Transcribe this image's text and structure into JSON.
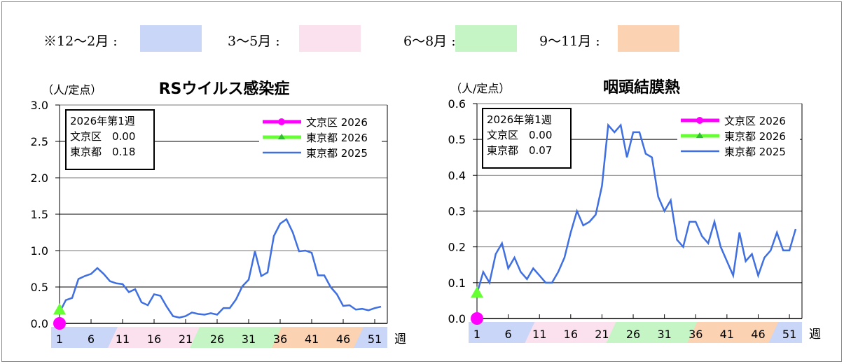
{
  "season_legend": [
    {
      "label": "※12〜2月 :",
      "color": "#c9d6f7"
    },
    {
      "label": "3〜5月 :",
      "color": "#fbe1ee"
    },
    {
      "label": "6〜8月 :",
      "color": "#c5f5c5"
    },
    {
      "label": "9〜11月 :",
      "color": "#fbd3b3"
    }
  ],
  "chart_data": [
    {
      "type": "line",
      "title": "RSウイルス感染症",
      "ylabel": "（人/定点）",
      "xlabel": "週",
      "ylim": [
        0,
        3.0
      ],
      "yticks": [
        "0.0",
        "0.5",
        "1.0",
        "1.5",
        "2.0",
        "2.5",
        "3.0"
      ],
      "ystep": 0.5,
      "xticks": [
        "1",
        "6",
        "11",
        "16",
        "21",
        "26",
        "31",
        "36",
        "41",
        "46",
        "51"
      ],
      "info_box": [
        "2026年第1週",
        "文京区　0.00",
        "東京都　0.18"
      ],
      "series": [
        {
          "name": "文京区 2026",
          "color": "#ff00ff",
          "marker": "circle",
          "values": [
            0.0
          ]
        },
        {
          "name": "東京都 2026",
          "color": "#66ff33",
          "marker": "triangle",
          "values": [
            0.18
          ]
        },
        {
          "name": "東京都 2025",
          "color": "#3f6fe0",
          "marker": "none",
          "values": [
            0.15,
            0.32,
            0.35,
            0.61,
            0.65,
            0.68,
            0.76,
            0.68,
            0.58,
            0.55,
            0.54,
            0.43,
            0.47,
            0.29,
            0.25,
            0.4,
            0.38,
            0.23,
            0.1,
            0.08,
            0.1,
            0.15,
            0.13,
            0.12,
            0.14,
            0.12,
            0.21,
            0.21,
            0.33,
            0.51,
            0.6,
            0.99,
            0.65,
            0.7,
            1.2,
            1.37,
            1.43,
            1.25,
            0.99,
            1.0,
            0.97,
            0.66,
            0.66,
            0.5,
            0.4,
            0.24,
            0.25,
            0.19,
            0.2,
            0.18,
            0.21,
            0.23
          ]
        }
      ]
    },
    {
      "type": "line",
      "title": "咽頭結膜熱",
      "ylabel": "（人/定点）",
      "xlabel": "週",
      "ylim": [
        0,
        0.6
      ],
      "yticks": [
        "0.0",
        "0.1",
        "0.2",
        "0.3",
        "0.4",
        "0.5",
        "0.6"
      ],
      "ystep": 0.1,
      "xticks": [
        "1",
        "6",
        "11",
        "16",
        "21",
        "26",
        "31",
        "36",
        "41",
        "46",
        "51"
      ],
      "info_box": [
        "2026年第1週",
        "文京区　0.00",
        "東京都　0.07"
      ],
      "series": [
        {
          "name": "文京区 2026",
          "color": "#ff00ff",
          "marker": "circle",
          "values": [
            0.0
          ]
        },
        {
          "name": "東京都 2026",
          "color": "#66ff33",
          "marker": "triangle",
          "values": [
            0.07
          ]
        },
        {
          "name": "東京都 2025",
          "color": "#3f6fe0",
          "marker": "none",
          "values": [
            0.07,
            0.13,
            0.1,
            0.18,
            0.21,
            0.14,
            0.17,
            0.13,
            0.11,
            0.14,
            0.12,
            0.1,
            0.1,
            0.13,
            0.17,
            0.24,
            0.3,
            0.26,
            0.27,
            0.29,
            0.37,
            0.54,
            0.52,
            0.54,
            0.45,
            0.52,
            0.52,
            0.46,
            0.45,
            0.34,
            0.3,
            0.33,
            0.22,
            0.2,
            0.27,
            0.27,
            0.23,
            0.21,
            0.27,
            0.2,
            0.16,
            0.12,
            0.24,
            0.16,
            0.18,
            0.12,
            0.17,
            0.19,
            0.24,
            0.19,
            0.19,
            0.25
          ]
        }
      ]
    }
  ]
}
